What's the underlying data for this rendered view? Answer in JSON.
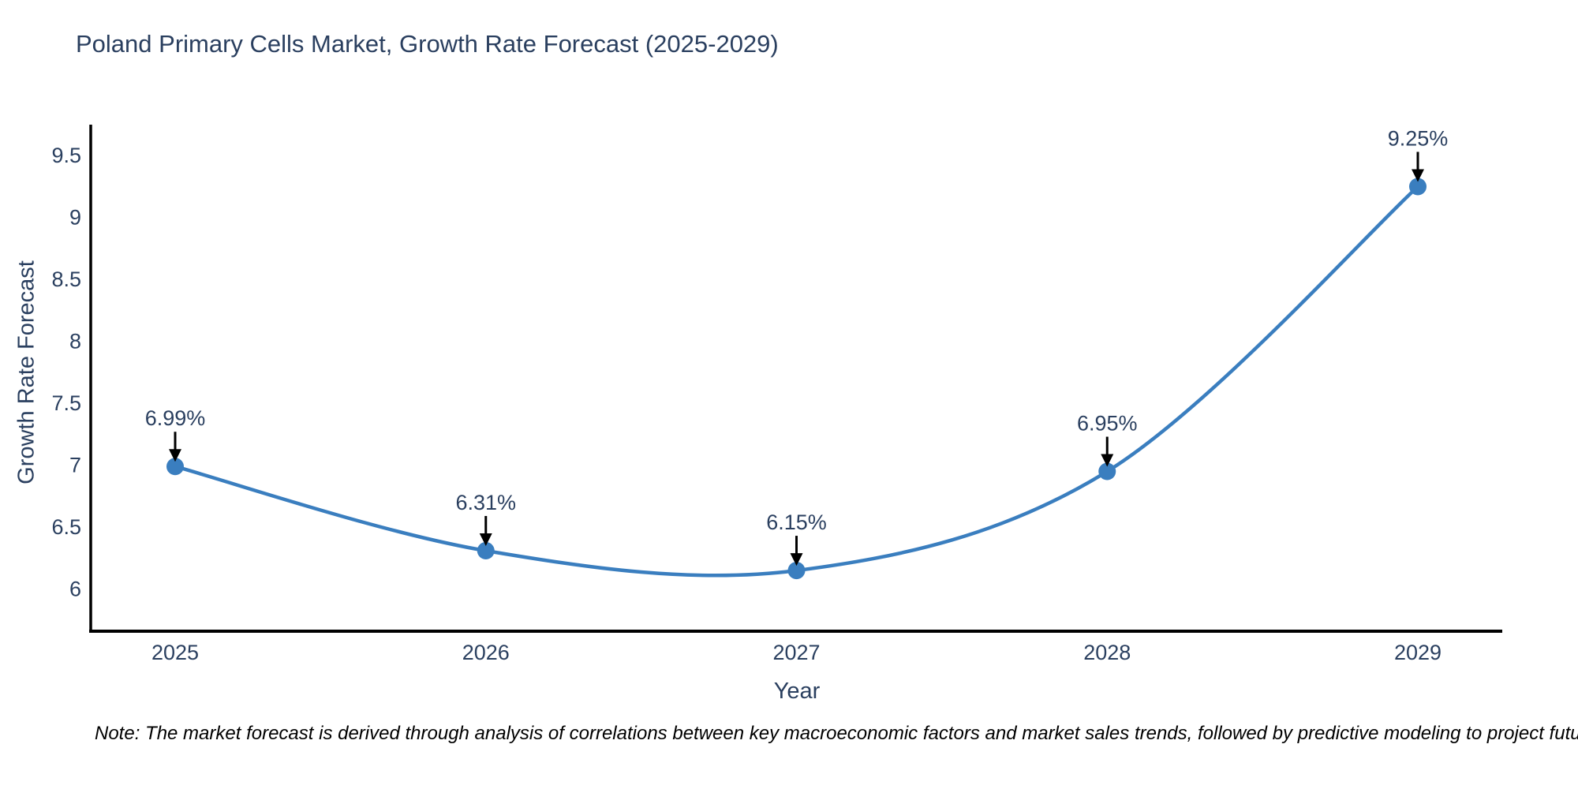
{
  "chart_data": {
    "type": "line",
    "title": "Poland Primary Cells Market, Growth Rate Forecast (2025-2029)",
    "xlabel": "Year",
    "ylabel": "Growth Rate Forecast",
    "categories": [
      "2025",
      "2026",
      "2027",
      "2028",
      "2029"
    ],
    "series": [
      {
        "name": "Growth Rate Forecast",
        "values": [
          6.99,
          6.31,
          6.15,
          6.95,
          9.25
        ],
        "point_labels": [
          "6.99%",
          "6.31%",
          "6.15%",
          "6.95%",
          "9.25%"
        ],
        "line_color": "#3a7ebf",
        "marker_color": "#3a7ebf",
        "line_shape": "spline"
      }
    ],
    "yticks": [
      6,
      6.5,
      7,
      7.5,
      8,
      8.5,
      9,
      9.5
    ],
    "ylim": [
      5.66,
      9.75
    ],
    "grid": false,
    "legend": "none",
    "annotation_arrow_color": "#000000",
    "axis_color": "#000000",
    "text_color": "#2a3f5f"
  },
  "note": "Note: The market forecast is derived through analysis of correlations between key macroeconomic factors and market sales trends, followed by predictive modeling to project future sales"
}
